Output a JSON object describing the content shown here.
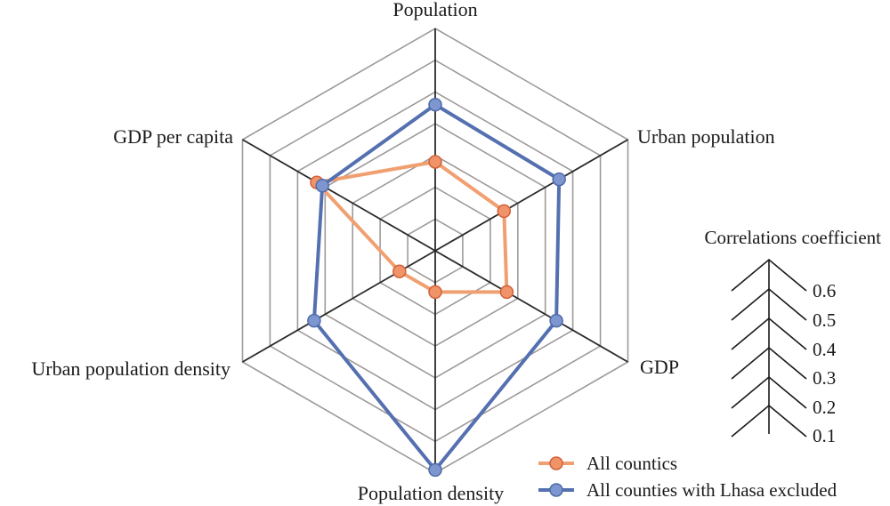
{
  "chart_data": {
    "type": "radar",
    "axes": [
      "Population",
      "Urban population",
      "GDP",
      "Population density",
      "Urban population density",
      "GDP per capita"
    ],
    "scale": {
      "title": "Correlations coefficient",
      "ticks": [
        "0.6",
        "0.5",
        "0.4",
        "0.3",
        "0.2",
        "0.1"
      ],
      "min": 0,
      "max": 0.7
    },
    "series": [
      {
        "name": "All countics",
        "color": "#f0a070",
        "marker_color": "#ef9468",
        "marker_stroke": "#d2603a",
        "values": [
          0.28,
          0.25,
          0.26,
          0.13,
          0.13,
          0.43
        ]
      },
      {
        "name": "All counties with Lhasa excluded",
        "color": "#5470b0",
        "marker_color": "#7d96cf",
        "marker_stroke": "#4e6aa8",
        "values": [
          0.46,
          0.45,
          0.44,
          0.69,
          0.44,
          0.41
        ]
      }
    ],
    "grid_color": "#a09a9a",
    "spoke_color": "#2a2a2a"
  }
}
